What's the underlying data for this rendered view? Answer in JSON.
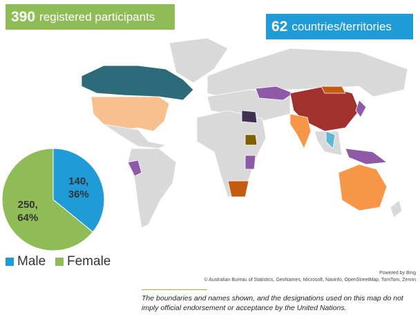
{
  "header": {
    "participants": {
      "number": "390",
      "label": "registered participants"
    },
    "countries": {
      "number": "62",
      "label": "countries/territories"
    }
  },
  "chart_data": {
    "type": "pie",
    "categories": [
      "Male",
      "Female"
    ],
    "values": [
      140,
      250
    ],
    "value_labels": [
      "140, 36%",
      "250, 64%"
    ],
    "colors": [
      "#1f9bd7",
      "#8fbc57"
    ],
    "legend": "bottom"
  },
  "map": {
    "powered_by": "Powered by Bing",
    "attribution": "© Australian Bureau of Statistics, GeoNames, Microsoft, Navinfo, OpenStreetMap, TomTom, Zenrin",
    "disclaimer": "The boundaries and names shown, and the designations used on this map do not imply official endorsement or acceptance by the United Nations."
  }
}
